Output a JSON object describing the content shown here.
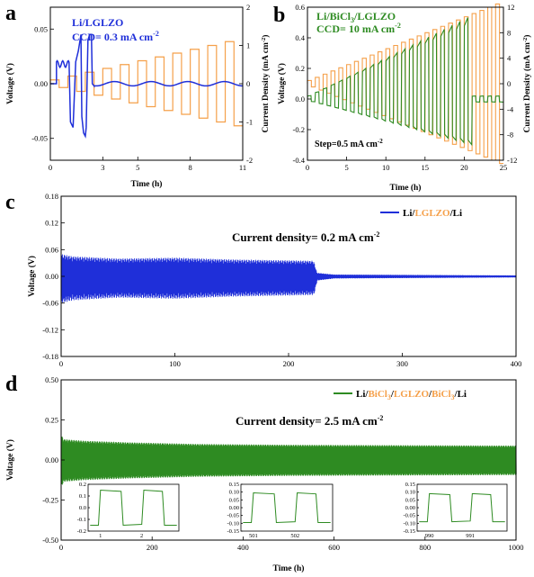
{
  "colors": {
    "blue": "#1f2fd9",
    "orange": "#f5a04a",
    "green": "#2e8b22",
    "black": "#000000"
  },
  "chart_data": [
    {
      "panel": "a",
      "type": "line",
      "label": "a",
      "annotations": [
        "Li/LGLZO",
        "CCD= 0.3 mA cm"
      ],
      "xlabel": "Time (h)",
      "ylabel": "Voltage (V)",
      "y2label": "Current Density (mA cm",
      "xlim": [
        0,
        11
      ],
      "ylim": [
        -0.07,
        0.07
      ],
      "y2lim": [
        -2,
        2
      ],
      "xticks": [
        0,
        3,
        5,
        8,
        11
      ],
      "yticks": [
        0.05,
        0.0,
        -0.05
      ],
      "y2ticks": [
        2,
        1,
        0,
        -1,
        -2
      ],
      "series": [
        {
          "role": "voltage",
          "color": "blue"
        },
        {
          "role": "current density",
          "color": "orange",
          "step_start": 0.1,
          "step_increment": 0.1,
          "step_hours": 1
        }
      ]
    },
    {
      "panel": "b",
      "type": "line",
      "label": "b",
      "annotations": [
        "Li/BiCl",
        "/LGLZO",
        "CCD= 10 mA cm",
        "Step=0.5 mA cm"
      ],
      "xlabel": "Time (h)",
      "ylabel": "Voltage (V)",
      "y2label": "Current Density (mA cm",
      "xlim": [
        0,
        25
      ],
      "ylim": [
        -0.4,
        0.6
      ],
      "y2lim": [
        -12,
        12
      ],
      "xticks": [
        0,
        5,
        10,
        15,
        20,
        25
      ],
      "yticks": [
        0.6,
        0.4,
        0.2,
        0.0,
        -0.2,
        -0.4
      ],
      "y2ticks": [
        12,
        8,
        4,
        0,
        -4,
        -8,
        -12
      ],
      "series": [
        {
          "role": "voltage",
          "color": "green"
        },
        {
          "role": "current density",
          "color": "orange",
          "step_start": 0.5,
          "step_increment": 0.5,
          "step_hours": 1
        }
      ]
    },
    {
      "panel": "c",
      "type": "line",
      "label": "c",
      "annotation": "Current density= 0.2 mA cm",
      "legend": {
        "parts": [
          "Li/",
          "LGLZO",
          "/Li"
        ],
        "position": "top-right"
      },
      "ylabel": "Voltage (V)",
      "xlim": [
        0,
        400
      ],
      "ylim": [
        -0.18,
        0.18
      ],
      "xticks": [
        0,
        100,
        200,
        300,
        400
      ],
      "yticks": [
        0.18,
        0.12,
        0.06,
        0.0,
        -0.06,
        -0.12,
        -0.18
      ],
      "series": [
        {
          "role": "voltage",
          "color": "blue",
          "envelope_t": [
            0,
            10,
            50,
            100,
            150,
            200,
            222,
            225,
            240,
            400
          ],
          "envelope_v": [
            0.05,
            0.045,
            0.04,
            0.042,
            0.038,
            0.036,
            0.035,
            0.008,
            0.004,
            0.002
          ]
        }
      ]
    },
    {
      "panel": "d",
      "type": "line",
      "label": "d",
      "annotation": "Current density= 2.5 mA cm",
      "legend": {
        "parts": [
          "Li/",
          "BiCl",
          "/",
          "LGLZO",
          "/",
          "BiCl",
          "/Li"
        ],
        "position": "top-right"
      },
      "xlabel": "Time (h)",
      "ylabel": "Voltage (V)",
      "xlim": [
        0,
        1000
      ],
      "ylim": [
        -0.5,
        0.5
      ],
      "xticks": [
        0,
        200,
        400,
        600,
        800,
        1000
      ],
      "yticks": [
        0.5,
        0.25,
        0.0,
        -0.25,
        -0.5
      ],
      "series": [
        {
          "role": "voltage",
          "color": "green",
          "envelope_t": [
            0,
            5,
            50,
            150,
            300,
            500,
            1000
          ],
          "envelope_v": [
            0.16,
            0.13,
            0.12,
            0.11,
            0.1,
            0.095,
            0.09
          ]
        }
      ],
      "insets": [
        {
          "xticks": [
            1,
            2
          ],
          "yticks": [
            0.2,
            0.1,
            0.0,
            -0.1,
            -0.2
          ],
          "ylim": [
            -0.2,
            0.2
          ],
          "xlim": [
            0.7,
            2.9
          ],
          "plateau": 0.15
        },
        {
          "xticks": [
            501,
            502
          ],
          "yticks": [
            0.15,
            0.1,
            0.05,
            0.0,
            -0.05,
            -0.1,
            -0.15
          ],
          "ylim": [
            -0.15,
            0.15
          ],
          "xlim": [
            500.7,
            502.9
          ],
          "plateau": 0.095
        },
        {
          "xticks": [
            990,
            991
          ],
          "yticks": [
            0.15,
            0.1,
            0.05,
            0.0,
            -0.05,
            -0.1,
            -0.15
          ],
          "ylim": [
            -0.15,
            0.15
          ],
          "xlim": [
            989.7,
            991.9
          ],
          "plateau": 0.09
        }
      ]
    }
  ]
}
